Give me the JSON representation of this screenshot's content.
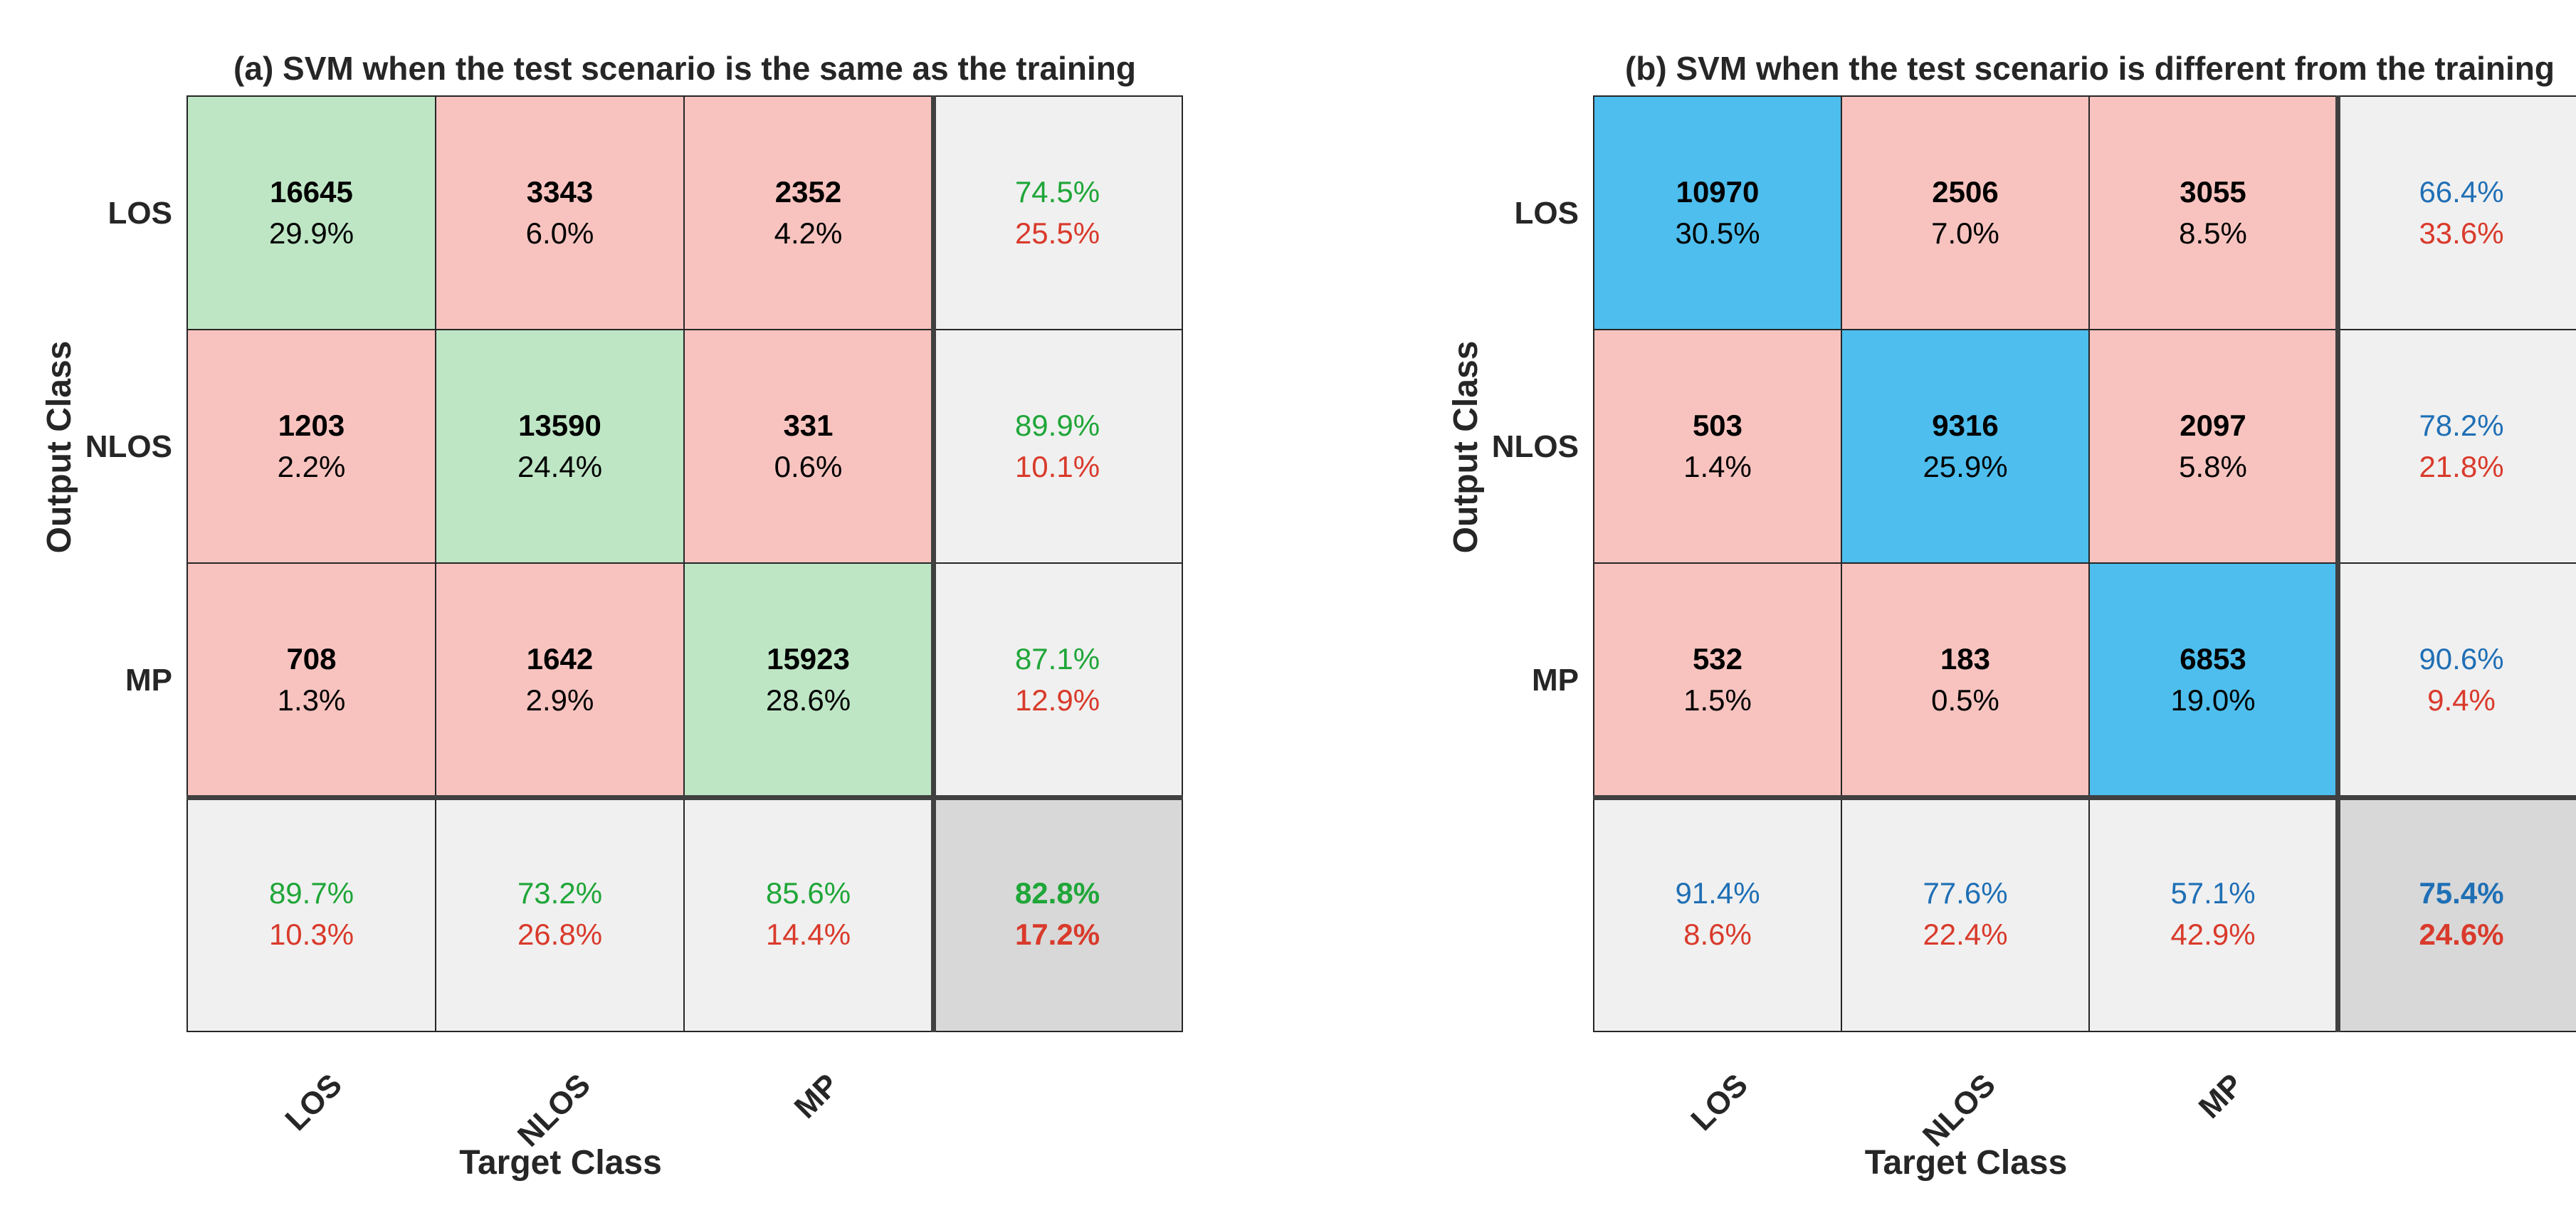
{
  "chart_data": [
    {
      "type": "heatmap",
      "subtype": "confusion-matrix",
      "title": "(a) SVM when the test scenario is the same as the training",
      "xlabel": "Target Class",
      "ylabel": "Output Class",
      "x_tick_labels": [
        "LOS",
        "NLOS",
        "MP"
      ],
      "y_tick_labels": [
        "LOS",
        "NLOS",
        "MP"
      ],
      "cells": [
        [
          {
            "count": "16645",
            "pct": "29.9%"
          },
          {
            "count": "3343",
            "pct": "6.0%"
          },
          {
            "count": "2352",
            "pct": "4.2%"
          }
        ],
        [
          {
            "count": "1203",
            "pct": "2.2%"
          },
          {
            "count": "13590",
            "pct": "24.4%"
          },
          {
            "count": "331",
            "pct": "0.6%"
          }
        ],
        [
          {
            "count": "708",
            "pct": "1.3%"
          },
          {
            "count": "1642",
            "pct": "2.9%"
          },
          {
            "count": "15923",
            "pct": "28.6%"
          }
        ]
      ],
      "row_summary": [
        {
          "correct": "74.5%",
          "wrong": "25.5%"
        },
        {
          "correct": "89.9%",
          "wrong": "10.1%"
        },
        {
          "correct": "87.1%",
          "wrong": "12.9%"
        }
      ],
      "col_summary": [
        {
          "correct": "89.7%",
          "wrong": "10.3%"
        },
        {
          "correct": "73.2%",
          "wrong": "26.8%"
        },
        {
          "correct": "85.6%",
          "wrong": "14.4%"
        }
      ],
      "overall": {
        "correct": "82.8%",
        "wrong": "17.2%"
      },
      "colors": {
        "diag": "#bee6c5",
        "offdiag": "#f8c3bf",
        "summary": "#f0f0f0",
        "overall": "#d8d8d8",
        "correct_text": "#1fa638",
        "wrong_text": "#d93a2b"
      }
    },
    {
      "type": "heatmap",
      "subtype": "confusion-matrix",
      "title": "(b) SVM when the test scenario is different from the training",
      "xlabel": "Target Class",
      "ylabel": "Output Class",
      "x_tick_labels": [
        "LOS",
        "NLOS",
        "MP"
      ],
      "y_tick_labels": [
        "LOS",
        "NLOS",
        "MP"
      ],
      "cells": [
        [
          {
            "count": "10970",
            "pct": "30.5%"
          },
          {
            "count": "2506",
            "pct": "7.0%"
          },
          {
            "count": "3055",
            "pct": "8.5%"
          }
        ],
        [
          {
            "count": "503",
            "pct": "1.4%"
          },
          {
            "count": "9316",
            "pct": "25.9%"
          },
          {
            "count": "2097",
            "pct": "5.8%"
          }
        ],
        [
          {
            "count": "532",
            "pct": "1.5%"
          },
          {
            "count": "183",
            "pct": "0.5%"
          },
          {
            "count": "6853",
            "pct": "19.0%"
          }
        ]
      ],
      "row_summary": [
        {
          "correct": "66.4%",
          "wrong": "33.6%"
        },
        {
          "correct": "78.2%",
          "wrong": "21.8%"
        },
        {
          "correct": "90.6%",
          "wrong": "9.4%"
        }
      ],
      "col_summary": [
        {
          "correct": "91.4%",
          "wrong": "8.6%"
        },
        {
          "correct": "77.6%",
          "wrong": "22.4%"
        },
        {
          "correct": "57.1%",
          "wrong": "42.9%"
        }
      ],
      "overall": {
        "correct": "75.4%",
        "wrong": "24.6%"
      },
      "colors": {
        "diag": "#4dbeed",
        "offdiag": "#f8c3bf",
        "summary": "#f0f0f0",
        "overall": "#d8d8d8",
        "correct_text": "#1f6fb5",
        "wrong_text": "#d93a2b"
      }
    }
  ]
}
